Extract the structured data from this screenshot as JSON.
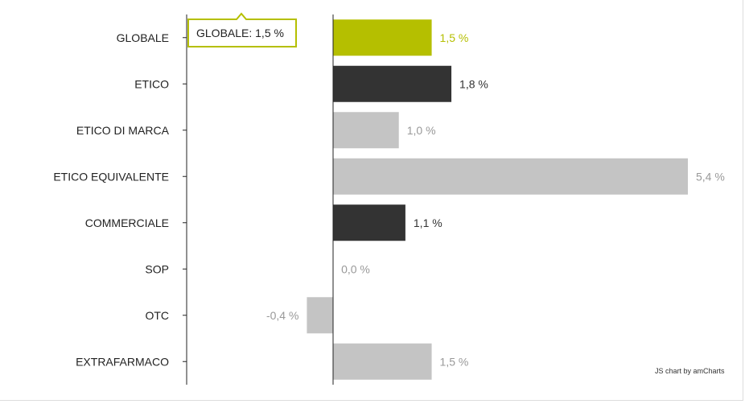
{
  "chart_data": {
    "type": "bar",
    "orientation": "horizontal",
    "categories": [
      "GLOBALE",
      "ETICO",
      "ETICO DI MARCA",
      "ETICO EQUIVALENTE",
      "COMMERCIALE",
      "SOP",
      "OTC",
      "EXTRAFARMACO"
    ],
    "values": [
      1.5,
      1.8,
      1.0,
      5.4,
      1.1,
      0.0,
      -0.4,
      1.5
    ],
    "value_labels": [
      "1,5 %",
      "1,8 %",
      "1,0 %",
      "5,4 %",
      "1,1 %",
      "0,0 %",
      "-0,4 %",
      "1,5 %"
    ],
    "bar_colors": [
      "#b5bf00",
      "#333333",
      "#c4c4c4",
      "#c4c4c4",
      "#333333",
      "#c4c4c4",
      "#c4c4c4",
      "#c4c4c4"
    ],
    "label_colors": [
      "#b5bf00",
      "#333333",
      "#999999",
      "#999999",
      "#333333",
      "#999999",
      "#999999",
      "#999999"
    ],
    "xlim": [
      -2.23,
      5.4
    ],
    "grid": false,
    "legend": "none"
  },
  "tooltip": {
    "text": "GLOBALE: 1,5 %",
    "border_color": "#b5bf00"
  },
  "credit": "JS chart by amCharts"
}
